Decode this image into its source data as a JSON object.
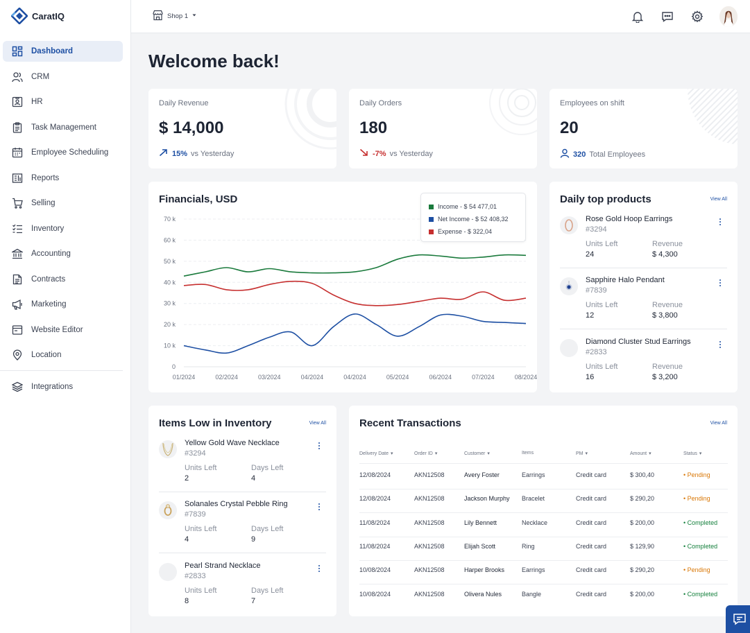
{
  "app": {
    "name": "CaratIQ",
    "brand_color": "#1d4fa3"
  },
  "sidebar": {
    "items": [
      {
        "label": "Dashboard",
        "icon": "grid-icon"
      },
      {
        "label": "CRM",
        "icon": "users-icon"
      },
      {
        "label": "HR",
        "icon": "id-card-icon"
      },
      {
        "label": "Task Management",
        "icon": "clipboard-icon"
      },
      {
        "label": "Employee Scheduling",
        "icon": "calendar-icon"
      },
      {
        "label": "Reports",
        "icon": "report-icon"
      },
      {
        "label": "Selling",
        "icon": "cart-icon"
      },
      {
        "label": "Inventory",
        "icon": "list-check-icon"
      },
      {
        "label": "Accounting",
        "icon": "bank-icon"
      },
      {
        "label": "Contracts",
        "icon": "document-icon"
      },
      {
        "label": "Marketing",
        "icon": "megaphone-icon"
      },
      {
        "label": "Website Editor",
        "icon": "browser-icon"
      },
      {
        "label": "Location",
        "icon": "map-pin-icon"
      }
    ],
    "integrations": {
      "label": "Integrations",
      "icon": "layers-icon"
    }
  },
  "topbar": {
    "shop": "Shop 1"
  },
  "page": {
    "title": "Welcome back!"
  },
  "stats": {
    "revenue": {
      "title": "Daily Revenue",
      "value": "$ 14,000",
      "change": "15%",
      "suffix": "vs Yesterday"
    },
    "orders": {
      "title": "Daily Orders",
      "value": "180",
      "change": "-7%",
      "suffix": "vs Yesterday"
    },
    "employees": {
      "title": "Employees on shift",
      "value": "20",
      "total": "320",
      "suffix": "Total Employees"
    }
  },
  "financials": {
    "title": "Financials, USD",
    "legend": [
      {
        "label": "Income - $ 54 477,01",
        "color": "#1a7a3c"
      },
      {
        "label": "Net Income - $ 52 408,32",
        "color": "#1d4fa3"
      },
      {
        "label": "Expense - $ 322,04",
        "color": "#c62f2f"
      }
    ]
  },
  "chart_data": {
    "type": "line",
    "title": "Financials, USD",
    "categories": [
      "01/2024",
      "02/2024",
      "03/2024",
      "04/2024",
      "04/2024",
      "05/2024",
      "06/2024",
      "07/2024",
      "08/2024"
    ],
    "y_tick_labels": [
      "0",
      "10 k",
      "20 k",
      "30 k",
      "40 k",
      "50 k",
      "60 k",
      "70 k"
    ],
    "ylim": [
      0,
      70000
    ],
    "series": [
      {
        "name": "Income",
        "color": "#1a7a3c",
        "x": [
          0,
          0.5,
          1,
          1.5,
          2,
          2.5,
          3,
          3.5,
          4,
          4.5,
          5,
          5.5,
          6,
          6.5,
          7,
          7.5,
          8
        ],
        "values": [
          43000,
          45000,
          47000,
          45000,
          46500,
          45000,
          44500,
          44500,
          45000,
          47000,
          51000,
          53000,
          52500,
          51500,
          52000,
          53000,
          52800
        ]
      },
      {
        "name": "Expense",
        "color": "#c62f2f",
        "x": [
          0,
          0.5,
          1,
          1.5,
          2,
          2.5,
          3,
          3.5,
          4,
          4.5,
          5,
          5.5,
          6,
          6.5,
          7,
          7.5,
          8
        ],
        "values": [
          38500,
          39000,
          36500,
          36500,
          39000,
          40500,
          39500,
          34000,
          30000,
          29000,
          29500,
          31000,
          32500,
          32000,
          35500,
          31500,
          32500
        ]
      },
      {
        "name": "Net Income",
        "color": "#1d4fa3",
        "x": [
          0,
          0.5,
          1,
          1.5,
          2,
          2.5,
          3,
          3.5,
          4,
          4.5,
          5,
          5.5,
          6,
          6.5,
          7,
          7.5,
          8
        ],
        "values": [
          10000,
          8000,
          6500,
          10000,
          14000,
          16500,
          10000,
          19000,
          25000,
          20000,
          14500,
          19000,
          24500,
          24000,
          21500,
          21000,
          20500
        ]
      }
    ]
  },
  "top_products": {
    "title": "Daily top products",
    "view_all": "View All",
    "label_a": "Units Left",
    "label_b": "Revenue",
    "items": [
      {
        "name": "Rose Gold Hoop Earrings",
        "id": "#3294",
        "units": "24",
        "revenue": "$ 4,300",
        "icon": "hoop-earring-icon"
      },
      {
        "name": "Sapphire Halo Pendant",
        "id": "#7839",
        "units": "12",
        "revenue": "$ 3,800",
        "icon": "pendant-icon"
      },
      {
        "name": "Diamond Cluster Stud Earrings",
        "id": "#2833",
        "units": "16",
        "revenue": "$ 3,200",
        "icon": "stud-earring-icon"
      }
    ]
  },
  "low_inventory": {
    "title": "Items Low in Inventory",
    "view_all": "View All",
    "label_a": "Units Left",
    "label_b": "Days Left",
    "items": [
      {
        "name": "Yellow Gold Wave Necklace",
        "id": "#3294",
        "units": "2",
        "days": "4",
        "icon": "necklace-icon"
      },
      {
        "name": "Solanales Crystal Pebble Ring",
        "id": "#7839",
        "units": "4",
        "days": "9",
        "icon": "ring-icon"
      },
      {
        "name": "Pearl Strand Necklace",
        "id": "#2833",
        "units": "8",
        "days": "7",
        "icon": "pearl-icon"
      }
    ]
  },
  "transactions": {
    "title": "Recent Transactions",
    "view_all": "View All",
    "headers": [
      "Delivery Date",
      "Order ID",
      "Customer",
      "Items",
      "PM",
      "Amount",
      "Status"
    ],
    "rows": [
      {
        "date": "12/08/2024",
        "order": "AKN12508",
        "customer": "Avery Foster",
        "item": "Earrings",
        "pm": "Credit card",
        "amount": "$ 300,40",
        "status": "Pending"
      },
      {
        "date": "12/08/2024",
        "order": "AKN12508",
        "customer": "Jackson Murphy",
        "item": "Bracelet",
        "pm": "Credit card",
        "amount": "$ 290,20",
        "status": "Pending"
      },
      {
        "date": "11/08/2024",
        "order": "AKN12508",
        "customer": "Lily Bennett",
        "item": "Necklace",
        "pm": "Credit card",
        "amount": "$ 200,00",
        "status": "Completed"
      },
      {
        "date": "11/08/2024",
        "order": "AKN12508",
        "customer": "Elijah Scott",
        "item": "Ring",
        "pm": "Credit card",
        "amount": "$ 129,90",
        "status": "Completed"
      },
      {
        "date": "10/08/2024",
        "order": "AKN12508",
        "customer": "Harper Brooks",
        "item": "Earrings",
        "pm": "Credit card",
        "amount": "$ 290,20",
        "status": "Pending"
      },
      {
        "date": "10/08/2024",
        "order": "AKN12508",
        "customer": "Olivera Nules",
        "item": "Bangle",
        "pm": "Credit card",
        "amount": "$ 200,00",
        "status": "Completed"
      }
    ]
  }
}
